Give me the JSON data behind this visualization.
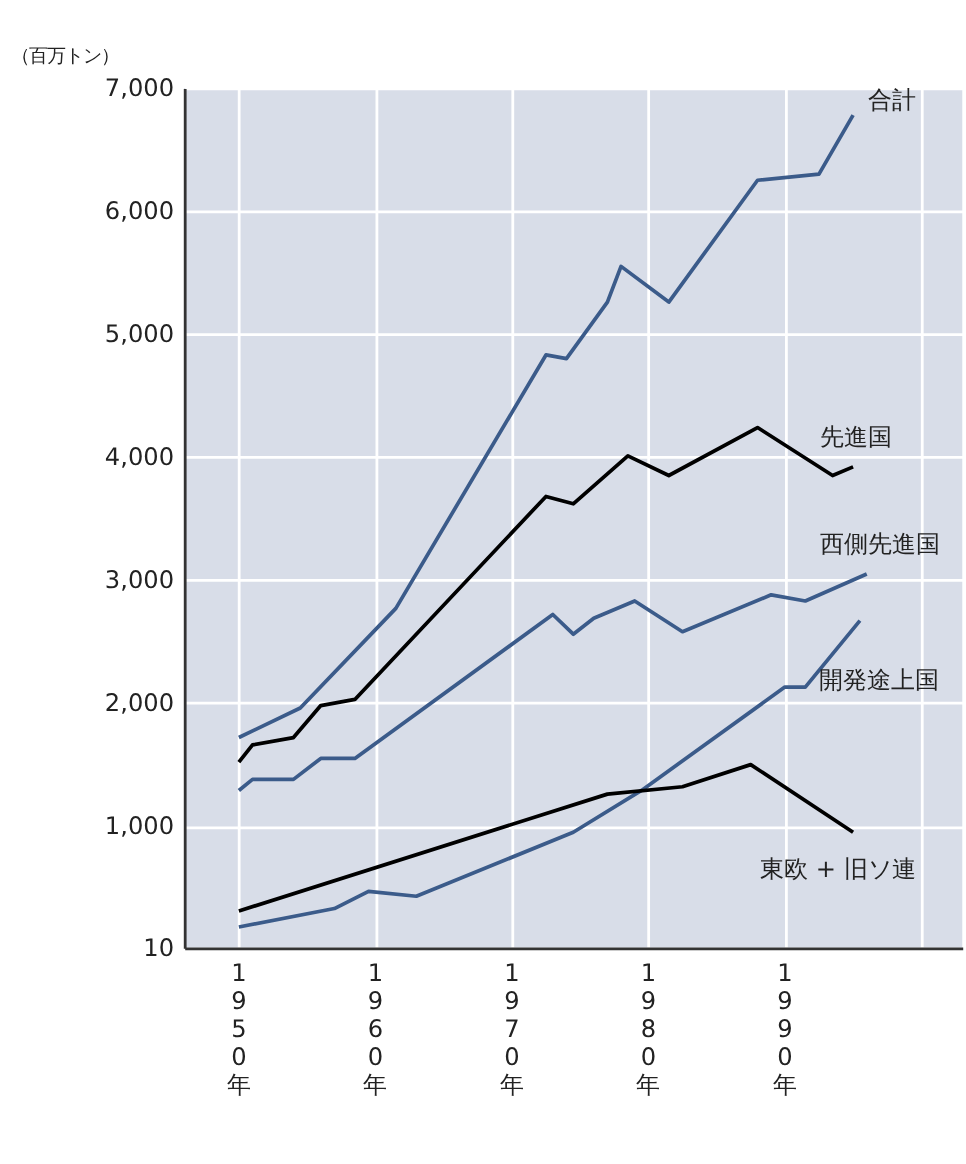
{
  "chart_data": {
    "type": "line",
    "ylabel": "（百万トン）",
    "xlim": [
      1946,
      2003
    ],
    "ylim": [
      10,
      7000
    ],
    "xticks": [
      {
        "value": 1950,
        "label": "1950年"
      },
      {
        "value": 1960,
        "label": "1960年"
      },
      {
        "value": 1970,
        "label": "1970年"
      },
      {
        "value": 1980,
        "label": "1980年"
      },
      {
        "value": 1990,
        "label": "1990年"
      },
      {
        "value": 2000,
        "label": null
      }
    ],
    "yticks": [
      10,
      {
        "value": 1000,
        "label": "1,000"
      },
      {
        "value": 2000,
        "label": "2,000"
      },
      {
        "value": 3000,
        "label": "3,000"
      },
      {
        "value": 4000,
        "label": "4,000"
      },
      {
        "value": 5000,
        "label": "5,000"
      },
      {
        "value": 6000,
        "label": "6,000"
      },
      {
        "value": 7000,
        "label": "7,000"
      }
    ],
    "grid": true,
    "line_style": "solid",
    "marker": "none",
    "series": [
      {
        "name": "合計",
        "color": "#3b5b8a",
        "x": [
          1950,
          1954.5,
          1961.5,
          1972.5,
          1974,
          1977,
          1978,
          1981.5,
          1988,
          1992.5,
          1995
        ],
        "values": [
          1720,
          1960,
          2770,
          4830,
          4800,
          5260,
          5550,
          5260,
          6250,
          6300,
          6780
        ]
      },
      {
        "name": "先進国",
        "color": "#000000",
        "x": [
          1950,
          1951,
          1954,
          1956,
          1958.5,
          1972.5,
          1974.5,
          1978.5,
          1981.5,
          1988,
          1993.5,
          1995
        ],
        "values": [
          1520,
          1660,
          1720,
          1980,
          2030,
          3680,
          3620,
          4010,
          3850,
          4240,
          3850,
          3920
        ]
      },
      {
        "name": "西側先進国",
        "color": "#3b5b8a",
        "x": [
          1950,
          1951,
          1954,
          1956,
          1958.5,
          1973,
          1974.5,
          1976,
          1979,
          1982.5,
          1989,
          1991.5,
          1996
        ],
        "values": [
          1290,
          1380,
          1380,
          1550,
          1550,
          2720,
          2560,
          2690,
          2830,
          2580,
          2880,
          2830,
          3050
        ]
      },
      {
        "name": "開発途上国",
        "color": "#3b5b8a",
        "x": [
          1950,
          1957,
          1959.5,
          1963,
          1974.5,
          1979.5,
          1990,
          1991.5,
          1995.5
        ],
        "values": [
          180,
          330,
          470,
          430,
          950,
          1290,
          2130,
          2130,
          2670
        ]
      },
      {
        "name": "東欧 + 旧ソ連",
        "color": "#000000",
        "x": [
          1950,
          1977,
          1982.5,
          1987.5,
          1995
        ],
        "values": [
          310,
          1260,
          1320,
          1500,
          950
        ]
      }
    ]
  }
}
